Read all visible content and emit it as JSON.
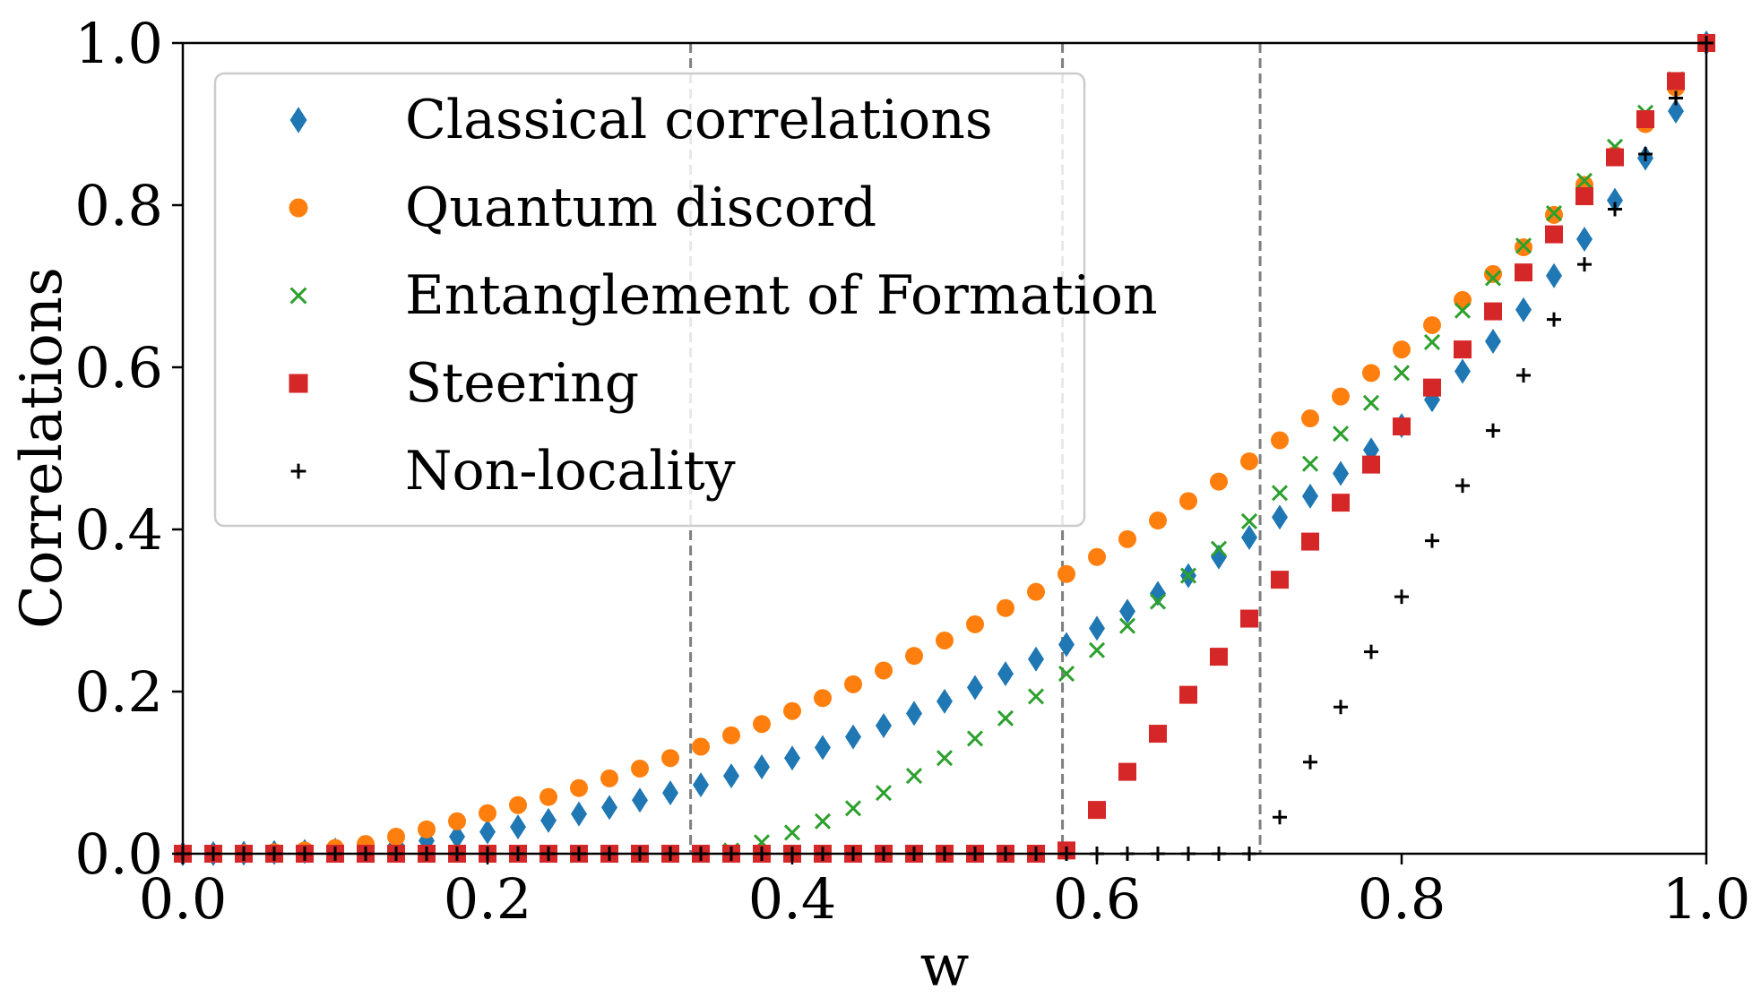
{
  "chart_data": {
    "type": "scatter",
    "xlabel": "w",
    "ylabel": "Correlations",
    "xlim": [
      0.0,
      1.0
    ],
    "ylim": [
      0.0,
      1.0
    ],
    "xticks": [
      "0.0",
      "0.2",
      "0.4",
      "0.6",
      "0.8",
      "1.0"
    ],
    "yticks": [
      "0.0",
      "0.2",
      "0.4",
      "0.6",
      "0.8",
      "1.0"
    ],
    "grid": false,
    "legend_position": "top-left",
    "vlines": [
      0.3333,
      0.5774,
      0.7071
    ],
    "vline_color": "#7f7f7f",
    "x": [
      0.0,
      0.02,
      0.04,
      0.06,
      0.08,
      0.1,
      0.12,
      0.14,
      0.16,
      0.18,
      0.2,
      0.22,
      0.24,
      0.26,
      0.28,
      0.3,
      0.32,
      0.34,
      0.36,
      0.38,
      0.4,
      0.42,
      0.44,
      0.46,
      0.48,
      0.5,
      0.52,
      0.54,
      0.56,
      0.58,
      0.6,
      0.62,
      0.64,
      0.66,
      0.68,
      0.7,
      0.72,
      0.74,
      0.76,
      0.78,
      0.8,
      0.82,
      0.84,
      0.86,
      0.88,
      0.9,
      0.92,
      0.94,
      0.96,
      0.98,
      1.0
    ],
    "series": [
      {
        "name": "Classical correlations",
        "marker": "diamond",
        "color": "#1f77b4",
        "values": [
          0.0,
          0.0001,
          0.0006,
          0.0015,
          0.0028,
          0.0045,
          0.007,
          0.011,
          0.016,
          0.021,
          0.027,
          0.033,
          0.041,
          0.049,
          0.057,
          0.066,
          0.075,
          0.085,
          0.096,
          0.107,
          0.118,
          0.131,
          0.144,
          0.158,
          0.173,
          0.188,
          0.205,
          0.222,
          0.24,
          0.258,
          0.278,
          0.299,
          0.321,
          0.343,
          0.366,
          0.39,
          0.415,
          0.441,
          0.469,
          0.498,
          0.528,
          0.56,
          0.595,
          0.632,
          0.671,
          0.713,
          0.758,
          0.806,
          0.858,
          0.916,
          1.0
        ]
      },
      {
        "name": "Quantum discord",
        "marker": "circle",
        "color": "#ff7f0e",
        "values": [
          0.0,
          0.0002,
          0.0009,
          0.002,
          0.004,
          0.007,
          0.012,
          0.021,
          0.03,
          0.04,
          0.05,
          0.06,
          0.07,
          0.081,
          0.093,
          0.105,
          0.118,
          0.132,
          0.146,
          0.16,
          0.176,
          0.192,
          0.209,
          0.226,
          0.244,
          0.263,
          0.283,
          0.303,
          0.323,
          0.345,
          0.366,
          0.388,
          0.411,
          0.435,
          0.459,
          0.484,
          0.51,
          0.537,
          0.564,
          0.593,
          0.622,
          0.652,
          0.683,
          0.715,
          0.748,
          0.788,
          0.825,
          0.862,
          0.9,
          0.945,
          1.0
        ]
      },
      {
        "name": "Entanglement of Formation",
        "marker": "x",
        "color": "#2ca02c",
        "values": [
          0,
          0,
          0,
          0,
          0,
          0,
          0,
          0,
          0,
          0,
          0,
          0,
          0,
          0,
          0,
          0,
          0,
          0,
          0.004,
          0.014,
          0.026,
          0.04,
          0.056,
          0.075,
          0.096,
          0.118,
          0.142,
          0.167,
          0.194,
          0.222,
          0.251,
          0.281,
          0.311,
          0.343,
          0.376,
          0.41,
          0.445,
          0.481,
          0.518,
          0.556,
          0.593,
          0.631,
          0.67,
          0.71,
          0.75,
          0.79,
          0.83,
          0.872,
          0.914,
          0.955,
          1.0
        ]
      },
      {
        "name": "Steering",
        "marker": "square",
        "color": "#d62728",
        "values": [
          0,
          0,
          0,
          0,
          0,
          0,
          0,
          0,
          0,
          0,
          0,
          0,
          0,
          0,
          0,
          0,
          0,
          0,
          0,
          0,
          0,
          0,
          0,
          0,
          0,
          0,
          0,
          0,
          0,
          0.004,
          0.054,
          0.101,
          0.148,
          0.196,
          0.243,
          0.29,
          0.338,
          0.385,
          0.433,
          0.48,
          0.527,
          0.575,
          0.622,
          0.669,
          0.717,
          0.764,
          0.811,
          0.859,
          0.906,
          0.953,
          1.0
        ]
      },
      {
        "name": "Non-locality",
        "marker": "plus",
        "color": "#000000",
        "values": [
          0,
          0,
          0,
          0,
          0,
          0,
          0,
          0,
          0,
          0,
          0,
          0,
          0,
          0,
          0,
          0,
          0,
          0,
          0,
          0,
          0,
          0,
          0,
          0,
          0,
          0,
          0,
          0,
          0,
          0,
          0,
          0,
          0,
          0,
          0,
          0,
          0.045,
          0.113,
          0.181,
          0.249,
          0.317,
          0.386,
          0.454,
          0.522,
          0.59,
          0.659,
          0.727,
          0.795,
          0.863,
          0.932,
          1.0
        ]
      }
    ]
  }
}
